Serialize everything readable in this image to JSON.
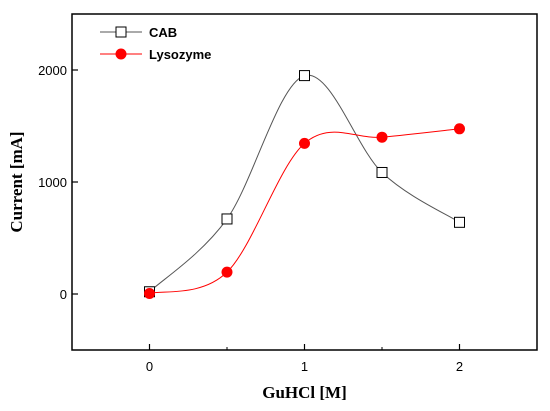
{
  "chart_data": {
    "type": "scatter",
    "xlabel": "GuHCl [M]",
    "ylabel": "Current [mA]",
    "xlim": [
      -0.5,
      2.5
    ],
    "ylim": [
      -500,
      2500
    ],
    "xticks": [
      0,
      1,
      2
    ],
    "xtick_labels": [
      "0",
      "1",
      "2"
    ],
    "yticks": [
      0,
      1000,
      2000
    ],
    "ytick_labels": [
      "0",
      "1000",
      "2000"
    ],
    "grid": false,
    "legend_position": "top-left",
    "smooth_lines": true,
    "series": [
      {
        "name": "CAB",
        "marker": "open-square",
        "color": "#000000",
        "line_color": "#555555",
        "x": [
          0,
          0.5,
          1,
          1.5,
          2
        ],
        "y": [
          20,
          670,
          1950,
          1085,
          640
        ]
      },
      {
        "name": "Lysozyme",
        "marker": "filled-circle",
        "color": "#ff0000",
        "line_color": "#ff0000",
        "x": [
          0,
          0.5,
          1,
          1.5,
          2
        ],
        "y": [
          5,
          195,
          1345,
          1400,
          1475
        ]
      }
    ]
  }
}
